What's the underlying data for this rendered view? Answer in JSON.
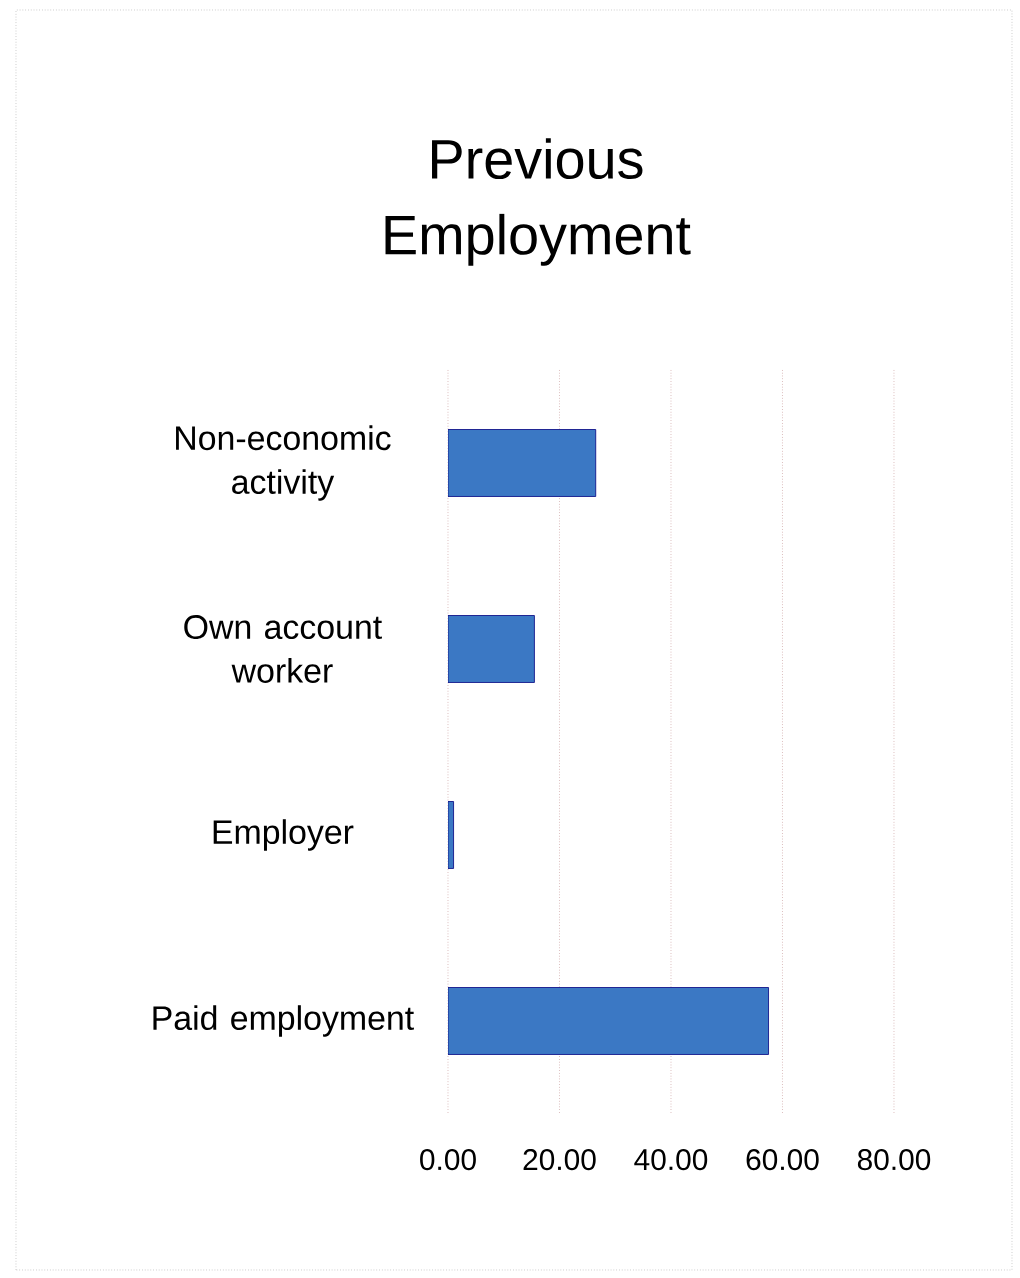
{
  "chart_data": {
    "type": "bar",
    "orientation": "horizontal",
    "title": "Previous Employment",
    "categories": [
      "Non-economic activity",
      "Own account worker",
      "Employer",
      "Paid employment"
    ],
    "values": [
      26.5,
      15.5,
      1,
      57.5
    ],
    "color": "#3b78c4",
    "xlim": [
      0,
      80
    ],
    "xticks": [
      {
        "value": 0,
        "label": "0.00"
      },
      {
        "value": 20,
        "label": "20.00"
      },
      {
        "value": 40,
        "label": "40.00"
      },
      {
        "value": 60,
        "label": "60.00"
      },
      {
        "value": 80,
        "label": "80.00"
      }
    ],
    "grid": "x"
  }
}
